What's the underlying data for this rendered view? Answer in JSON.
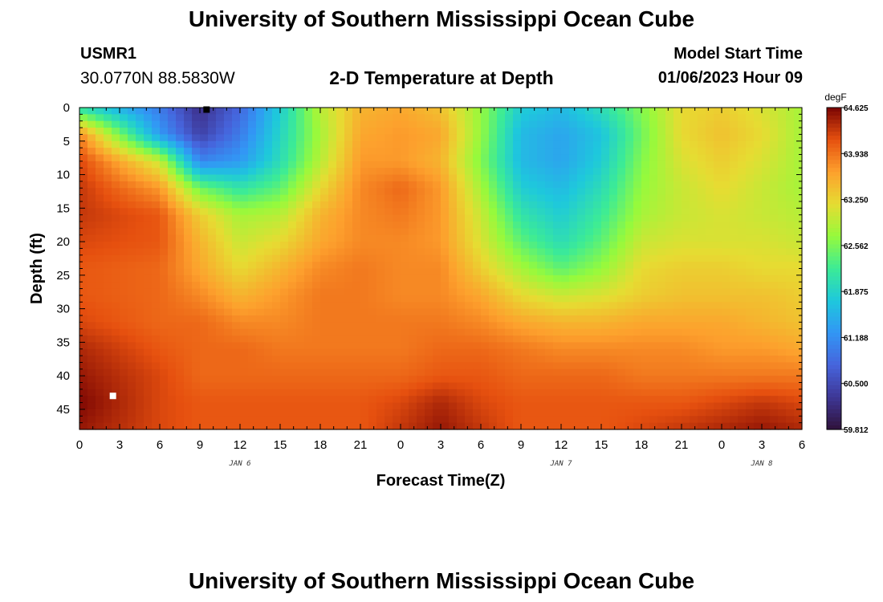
{
  "header": {
    "title": "University of Southern Mississippi Ocean Cube",
    "station": "USMR1",
    "coords": "30.0770N  88.5830W",
    "subtitle": "2-D Temperature at Depth",
    "model_start_label": "Model Start Time",
    "model_start_time": "01/06/2023 Hour 09"
  },
  "footer": {
    "title": "University of Southern Mississippi Ocean Cube"
  },
  "chart_data": {
    "type": "heatmap",
    "xlabel": "Forecast Time(Z)",
    "ylabel": "Depth (ft)",
    "xlim": [
      0,
      54
    ],
    "ylim": [
      0,
      48
    ],
    "x_tick_values": [
      0,
      3,
      6,
      9,
      12,
      15,
      18,
      21,
      24,
      27,
      30,
      33,
      36,
      39,
      42,
      45,
      48,
      51,
      54
    ],
    "x_tick_labels": [
      "0",
      "3",
      "6",
      "9",
      "12",
      "15",
      "18",
      "21",
      "0",
      "3",
      "6",
      "9",
      "12",
      "15",
      "18",
      "21",
      "0",
      "3",
      "6"
    ],
    "y_tick_values": [
      0,
      5,
      10,
      15,
      20,
      25,
      30,
      35,
      40,
      45
    ],
    "y_tick_labels": [
      "0",
      "5",
      "10",
      "15",
      "20",
      "25",
      "30",
      "35",
      "40",
      "45"
    ],
    "date_labels": [
      {
        "x": 12,
        "text": "JAN 6"
      },
      {
        "x": 36,
        "text": "JAN 7"
      },
      {
        "x": 51,
        "text": "JAN 8"
      }
    ],
    "colorbar": {
      "unit": "degF",
      "min": 59.812,
      "max": 64.625,
      "tick_labels": [
        "64.625",
        "63.938",
        "63.250",
        "62.562",
        "61.875",
        "61.188",
        "60.500",
        "59.812"
      ]
    },
    "markers": [
      {
        "x": 2.5,
        "y": 43,
        "color": "#ffffff"
      },
      {
        "x": 9.5,
        "y": 0.3,
        "color": "#000000"
      }
    ],
    "field": {
      "x": [
        0,
        6,
        9,
        12,
        15,
        18,
        21,
        24,
        27,
        30,
        33,
        36,
        39,
        42,
        45,
        48,
        51,
        54
      ],
      "y": [
        0,
        4,
        8,
        12,
        16,
        20,
        24,
        28,
        32,
        36,
        40,
        44,
        48
      ],
      "z": [
        [
          62.0,
          61.0,
          60.2,
          60.8,
          61.8,
          62.9,
          63.5,
          63.6,
          63.4,
          62.7,
          61.8,
          61.6,
          62.0,
          62.6,
          63.2,
          63.3,
          63.1,
          62.8
        ],
        [
          63.8,
          61.3,
          60.4,
          61.0,
          61.9,
          62.8,
          63.6,
          63.7,
          63.6,
          62.7,
          61.6,
          61.4,
          61.7,
          62.5,
          63.2,
          63.4,
          63.2,
          62.8
        ],
        [
          64.2,
          63.0,
          61.1,
          61.3,
          62.0,
          62.9,
          63.7,
          63.7,
          63.5,
          62.6,
          61.6,
          61.4,
          61.8,
          62.6,
          63.1,
          63.3,
          63.1,
          62.8
        ],
        [
          64.3,
          63.7,
          62.5,
          62.1,
          62.4,
          63.2,
          63.8,
          64.0,
          63.7,
          62.8,
          61.8,
          61.6,
          62.0,
          62.7,
          63.0,
          63.2,
          63.0,
          62.8
        ],
        [
          64.3,
          64.1,
          63.3,
          62.8,
          62.9,
          63.5,
          63.8,
          63.9,
          63.7,
          63.0,
          62.1,
          61.8,
          62.2,
          62.8,
          63.0,
          63.1,
          63.0,
          62.9
        ],
        [
          64.2,
          64.1,
          63.5,
          63.0,
          63.2,
          63.6,
          63.8,
          63.8,
          63.7,
          63.1,
          62.4,
          62.0,
          62.4,
          63.0,
          63.1,
          63.1,
          63.1,
          63.0
        ],
        [
          64.1,
          64.0,
          63.6,
          63.2,
          63.5,
          63.8,
          63.9,
          63.8,
          63.8,
          63.3,
          62.8,
          62.4,
          62.7,
          63.2,
          63.3,
          63.3,
          63.2,
          63.2
        ],
        [
          64.1,
          64.0,
          63.8,
          63.5,
          63.7,
          63.9,
          63.9,
          63.8,
          63.8,
          63.6,
          63.2,
          63.0,
          63.1,
          63.3,
          63.4,
          63.4,
          63.4,
          63.3
        ],
        [
          64.2,
          64.0,
          64.0,
          63.8,
          63.8,
          63.9,
          63.9,
          63.9,
          63.9,
          63.8,
          63.6,
          63.5,
          63.5,
          63.6,
          63.6,
          63.6,
          63.5,
          63.4
        ],
        [
          64.4,
          64.1,
          64.0,
          64.0,
          63.9,
          63.9,
          63.9,
          63.9,
          64.0,
          64.0,
          63.9,
          63.8,
          63.8,
          63.8,
          63.8,
          63.7,
          63.7,
          63.6
        ],
        [
          64.5,
          64.2,
          64.0,
          64.0,
          64.0,
          64.0,
          64.0,
          64.0,
          64.1,
          64.1,
          64.0,
          64.0,
          64.0,
          63.9,
          63.9,
          63.9,
          63.9,
          63.9
        ],
        [
          64.6,
          64.2,
          64.1,
          64.1,
          64.1,
          64.1,
          64.1,
          64.2,
          64.4,
          64.2,
          64.1,
          64.1,
          64.1,
          64.1,
          64.1,
          64.2,
          64.3,
          64.2
        ],
        [
          64.5,
          64.2,
          64.1,
          64.1,
          64.1,
          64.1,
          64.1,
          64.3,
          64.5,
          64.3,
          64.1,
          64.1,
          64.1,
          64.2,
          64.3,
          64.4,
          64.5,
          64.4
        ]
      ]
    }
  }
}
